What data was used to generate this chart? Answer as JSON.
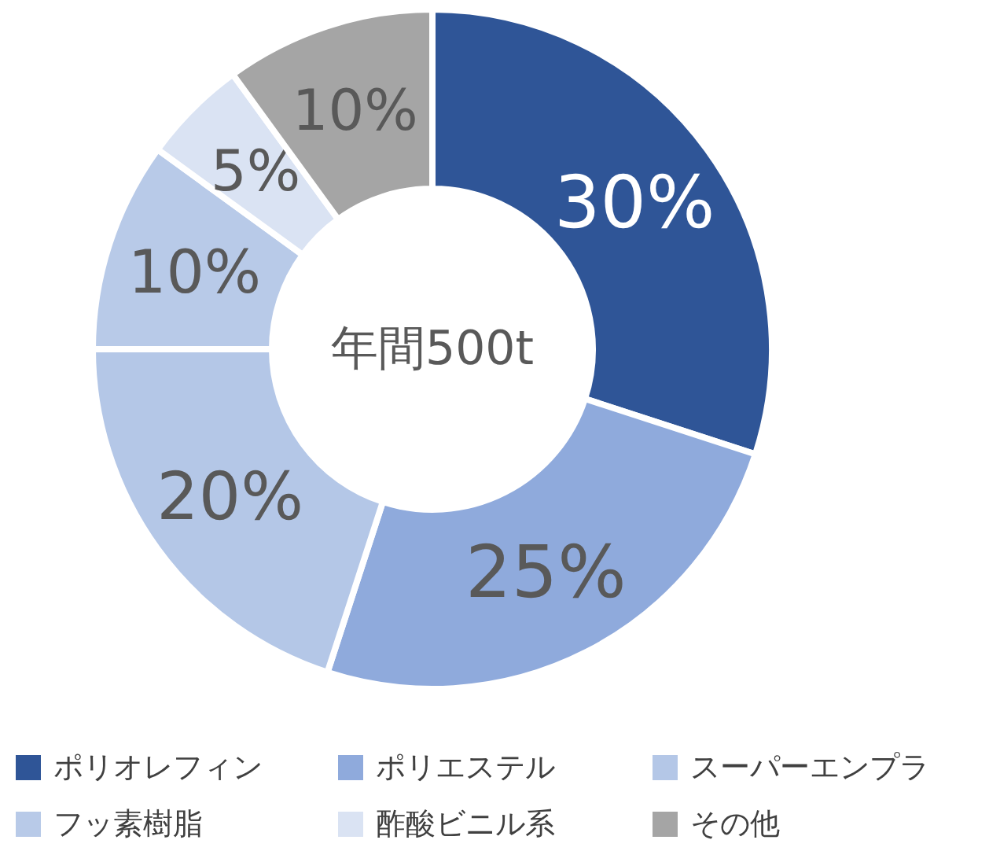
{
  "chart_data": {
    "type": "donut",
    "categories": [
      "ポリオレフィン",
      "ポリエステル",
      "スーパーエンプラ",
      "フッ素樹脂",
      "酢酸ビニル系",
      "その他"
    ],
    "values": [
      30,
      25,
      20,
      10,
      5,
      10
    ],
    "colors": [
      "#2f5597",
      "#8faadc",
      "#b4c7e7",
      "#b8cae8",
      "#dae3f3",
      "#a5a5a5"
    ],
    "value_labels": [
      "30%",
      "25%",
      "20%",
      "10%",
      "5%",
      "10%"
    ],
    "annotations": [
      "年間500t"
    ],
    "legend": "bottom"
  }
}
